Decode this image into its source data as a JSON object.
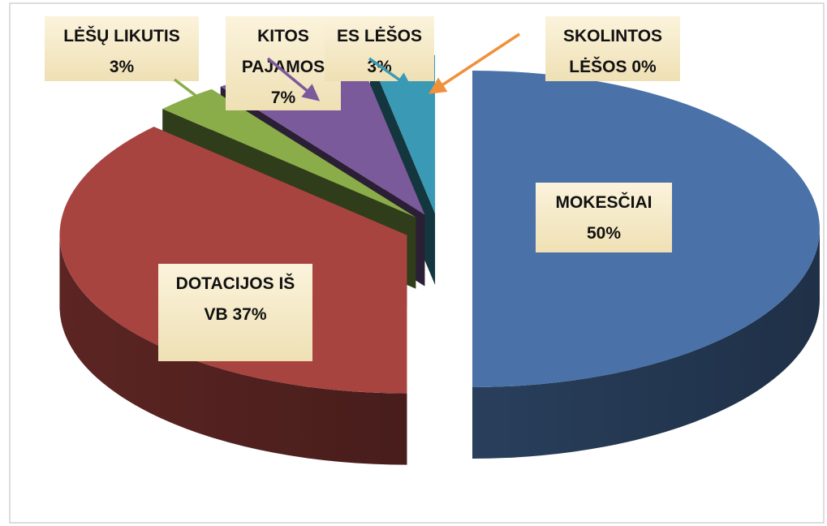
{
  "chart_data": {
    "type": "pie",
    "categories": [
      "MOKESČIAI",
      "DOTACIJOS IŠ VB",
      "LĖŠŲ LIKUTIS",
      "KITOS PAJAMOS",
      "ES LĖŠOS",
      "SKOLINTOS LĖŠOS"
    ],
    "values": [
      50,
      37,
      3,
      7,
      3,
      0
    ],
    "value_labels": [
      "50%",
      "37%",
      "3%",
      "7%",
      "3%",
      "0%"
    ],
    "colors": [
      "#4a72a8",
      "#a84440",
      "#8aad4a",
      "#7a5a9a",
      "#3a9ab5",
      "#f0913a"
    ]
  }
}
